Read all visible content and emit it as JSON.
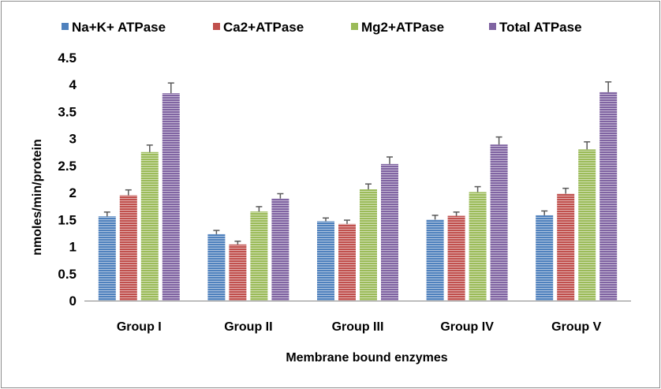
{
  "chart_data": {
    "type": "bar",
    "title": "",
    "xlabel": "Membrane bound enzymes",
    "ylabel": "nmoles/min/protein",
    "ylim": [
      0,
      4.5
    ],
    "yticks": [
      "0",
      "0.5",
      "1",
      "1.5",
      "2",
      "2.5",
      "3",
      "3.5",
      "4",
      "4.5"
    ],
    "categories": [
      "Group I",
      "Group II",
      "Group III",
      "Group IV",
      "Group V"
    ],
    "legend_position": "top",
    "series": [
      {
        "name": "Na+K+ ATPase",
        "color": "#4f81bd",
        "values": [
          1.56,
          1.23,
          1.47,
          1.5,
          1.58
        ],
        "errors": [
          0.08,
          0.07,
          0.06,
          0.08,
          0.08
        ]
      },
      {
        "name": "Ca2+ATPase",
        "color": "#c0504d",
        "values": [
          1.95,
          1.04,
          1.42,
          1.57,
          1.98
        ],
        "errors": [
          0.1,
          0.06,
          0.07,
          0.07,
          0.1
        ]
      },
      {
        "name": "Mg2+ATPase",
        "color": "#9bbb59",
        "values": [
          2.75,
          1.65,
          2.06,
          2.01,
          2.8
        ],
        "errors": [
          0.13,
          0.09,
          0.1,
          0.1,
          0.14
        ]
      },
      {
        "name": "Total ATPase",
        "color": "#8064a2",
        "values": [
          3.84,
          1.89,
          2.53,
          2.89,
          3.86
        ],
        "errors": [
          0.19,
          0.09,
          0.13,
          0.14,
          0.19
        ]
      }
    ]
  }
}
